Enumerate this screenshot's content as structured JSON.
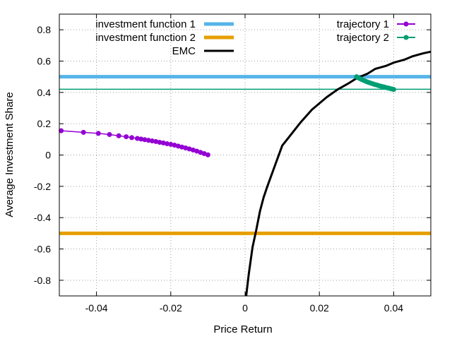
{
  "chart_data": {
    "type": "line",
    "title": "",
    "xlabel": "Price Return",
    "ylabel": "Average Investment Share",
    "xlim": [
      -0.05,
      0.05
    ],
    "ylim": [
      -0.9,
      0.9
    ],
    "x_ticks": [
      {
        "value": -0.04,
        "label": "-0.04"
      },
      {
        "value": -0.02,
        "label": "-0.02"
      },
      {
        "value": 0,
        "label": "0"
      },
      {
        "value": 0.02,
        "label": "0.02"
      },
      {
        "value": 0.04,
        "label": "0.04"
      }
    ],
    "y_ticks": [
      {
        "value": -0.8,
        "label": "-0.8"
      },
      {
        "value": -0.6,
        "label": "-0.6"
      },
      {
        "value": -0.4,
        "label": "-0.4"
      },
      {
        "value": -0.2,
        "label": "-0.2"
      },
      {
        "value": 0,
        "label": "0"
      },
      {
        "value": 0.2,
        "label": "0.2"
      },
      {
        "value": 0.4,
        "label": "0.4"
      },
      {
        "value": 0.6,
        "label": "0.6"
      },
      {
        "value": 0.8,
        "label": "0.8"
      }
    ],
    "grid": true,
    "legend_left_position": "top-left",
    "legend_right_position": "top-right",
    "series": [
      {
        "name": "investment function 1",
        "kind": "hline",
        "value": 0.5,
        "color": "#56b4e9"
      },
      {
        "name": "investment function 2",
        "kind": "hline",
        "value": -0.5,
        "color": "#e69f00"
      },
      {
        "name": "EMC",
        "kind": "line",
        "color": "#000000",
        "x": [
          0.0003,
          0.001,
          0.002,
          0.003,
          0.004,
          0.005,
          0.006,
          0.008,
          0.01,
          0.012,
          0.015,
          0.018,
          0.02,
          0.022,
          0.025,
          0.028,
          0.03,
          0.033,
          0.035,
          0.038,
          0.04,
          0.043,
          0.045,
          0.048,
          0.05
        ],
        "y": [
          -0.9,
          -0.76,
          -0.59,
          -0.48,
          -0.36,
          -0.27,
          -0.2,
          -0.07,
          0.06,
          0.12,
          0.21,
          0.29,
          0.33,
          0.37,
          0.42,
          0.46,
          0.49,
          0.52,
          0.55,
          0.57,
          0.59,
          0.61,
          0.63,
          0.65,
          0.66
        ]
      },
      {
        "name": "trajectory 1",
        "kind": "points",
        "color": "#9400d3",
        "x": [
          -0.0495,
          -0.0435,
          -0.0395,
          -0.0365,
          -0.034,
          -0.032,
          -0.0305,
          -0.029,
          -0.028,
          -0.027,
          -0.026,
          -0.025,
          -0.024,
          -0.023,
          -0.022,
          -0.021,
          -0.02,
          -0.019,
          -0.018,
          -0.017,
          -0.016,
          -0.015,
          -0.014,
          -0.013,
          -0.012,
          -0.011,
          -0.01
        ],
        "y": [
          0.155,
          0.145,
          0.138,
          0.131,
          0.123,
          0.117,
          0.111,
          0.106,
          0.102,
          0.098,
          0.094,
          0.09,
          0.086,
          0.081,
          0.077,
          0.072,
          0.068,
          0.063,
          0.057,
          0.051,
          0.045,
          0.039,
          0.032,
          0.025,
          0.017,
          0.009,
          0.001
        ]
      },
      {
        "name": "trajectory 2",
        "kind": "points",
        "color": "#009e73",
        "x": [
          0.03,
          0.0305,
          0.031,
          0.0315,
          0.032,
          0.0325,
          0.033,
          0.0335,
          0.034,
          0.0345,
          0.035,
          0.0355,
          0.036,
          0.0365,
          0.037,
          0.0375,
          0.038,
          0.0385,
          0.039,
          0.0395,
          0.04
        ],
        "y": [
          0.5,
          0.493,
          0.487,
          0.481,
          0.476,
          0.471,
          0.466,
          0.462,
          0.458,
          0.454,
          0.45,
          0.447,
          0.443,
          0.44,
          0.437,
          0.434,
          0.431,
          0.428,
          0.425,
          0.422,
          0.419
        ]
      },
      {
        "name": "",
        "kind": "hline",
        "value": 0.42,
        "color": "#009e73"
      }
    ]
  }
}
